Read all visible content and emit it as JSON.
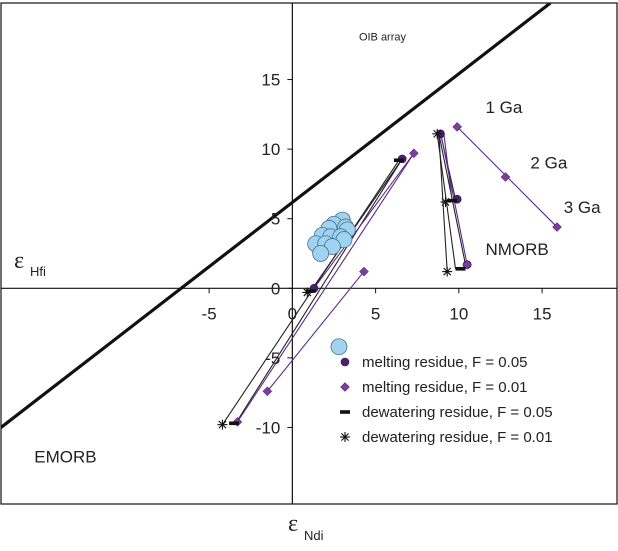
{
  "chart_data": {
    "type": "scatter",
    "xlabel": {
      "symbol": "ε",
      "subscript": "Ndi"
    },
    "ylabel": {
      "symbol": "ε",
      "subscript": "Hfi"
    },
    "xlim": [
      -17.5,
      19.5
    ],
    "ylim": [
      -15.5,
      20.5
    ],
    "x_ticks": [
      "-5",
      "0",
      "5",
      "10",
      "15"
    ],
    "y_ticks": [
      "-10",
      "-5",
      "0",
      "5",
      "10",
      "15"
    ],
    "grid": false,
    "legend_position": "bottom-right",
    "colors": {
      "data_points": "#9fd3ef",
      "melting_residue_f005": "#4a2170",
      "melting_residue_f001": "#7a3ea1",
      "trajectory_black": "#222222",
      "trajectory_purple": "#5b2a86"
    },
    "oib_array_line": {
      "label": "OIB array",
      "x": [
        -17.5,
        15.5
      ],
      "y": [
        -10,
        20.5
      ]
    },
    "data_points": [
      {
        "x": 3.0,
        "y": 4.9
      },
      {
        "x": 2.5,
        "y": 4.6
      },
      {
        "x": 3.2,
        "y": 4.4
      },
      {
        "x": 3.3,
        "y": 4.2
      },
      {
        "x": 2.2,
        "y": 4.3
      },
      {
        "x": 1.8,
        "y": 3.8
      },
      {
        "x": 2.3,
        "y": 3.7
      },
      {
        "x": 2.9,
        "y": 3.7
      },
      {
        "x": 3.1,
        "y": 3.5
      },
      {
        "x": 1.4,
        "y": 3.2
      },
      {
        "x": 2.0,
        "y": 3.2
      },
      {
        "x": 2.4,
        "y": 3.0
      },
      {
        "x": 1.7,
        "y": 2.5
      },
      {
        "x": 2.8,
        "y": -4.2
      }
    ],
    "trajectories": [
      {
        "color": "#222222",
        "from": [
          -4.2,
          -9.8
        ],
        "to": [
          6.4,
          9.2
        ]
      },
      {
        "color": "#222222",
        "from": [
          -3.4,
          -9.7
        ],
        "to": [
          6.6,
          9.3
        ]
      },
      {
        "color": "#222222",
        "from": [
          1.1,
          -0.2
        ],
        "to": [
          6.6,
          9.3
        ]
      },
      {
        "color": "#5b2a86",
        "from": [
          1.3,
          0.0
        ],
        "to": [
          7.3,
          9.7
        ]
      },
      {
        "color": "#5b2a86",
        "from": [
          -3.3,
          -9.6
        ],
        "to": [
          7.3,
          9.7
        ]
      },
      {
        "color": "#5b2a86",
        "from": [
          -1.5,
          -7.4
        ],
        "to": [
          4.3,
          1.2
        ]
      },
      {
        "color": "#222222",
        "from": [
          8.7,
          11.1
        ],
        "to": [
          9.8,
          1.4
        ]
      },
      {
        "color": "#222222",
        "from": [
          8.8,
          11.1
        ],
        "to": [
          10.4,
          1.7
        ]
      },
      {
        "color": "#222222",
        "from": [
          8.9,
          11.1
        ],
        "to": [
          9.8,
          6.4
        ]
      },
      {
        "color": "#222222",
        "from": [
          8.8,
          11.1
        ],
        "to": [
          9.3,
          1.2
        ]
      },
      {
        "color": "#5b2a86",
        "from": [
          8.9,
          11.2
        ],
        "to": [
          10.5,
          1.7
        ]
      },
      {
        "color": "#5b2a86",
        "from": [
          9.9,
          11.6
        ],
        "to": [
          15.9,
          4.4
        ]
      },
      {
        "color": "#5b2a86",
        "from": [
          9.1,
          11.1
        ],
        "to": [
          9.6,
          6.3
        ]
      }
    ],
    "series": [
      {
        "name": "melting residue, F = 0.05",
        "marker": "circle",
        "points": [
          [
            6.6,
            9.3
          ],
          [
            8.9,
            11.1
          ],
          [
            9.9,
            6.4
          ],
          [
            10.5,
            1.7
          ],
          [
            1.3,
            0.0
          ]
        ]
      },
      {
        "name": "melting residue, F = 0.01",
        "marker": "diamond",
        "points": [
          [
            7.3,
            9.7
          ],
          [
            9.9,
            11.6
          ],
          [
            12.8,
            8.0
          ],
          [
            15.9,
            4.4
          ],
          [
            10.5,
            1.7
          ],
          [
            4.3,
            1.2
          ],
          [
            -1.5,
            -7.4
          ],
          [
            -3.3,
            -9.6
          ]
        ]
      },
      {
        "name": "dewatering residue, F = 0.05",
        "marker": "dash",
        "points": [
          [
            6.4,
            9.2
          ],
          [
            9.6,
            6.3
          ],
          [
            10.1,
            1.4
          ],
          [
            1.1,
            -0.2
          ],
          [
            -3.5,
            -9.7
          ]
        ]
      },
      {
        "name": "dewatering residue, F = 0.01",
        "marker": "asterisk",
        "points": [
          [
            8.7,
            11.1
          ],
          [
            9.2,
            6.2
          ],
          [
            9.3,
            1.2
          ],
          [
            0.9,
            -0.3
          ],
          [
            -4.2,
            -9.8
          ]
        ]
      }
    ],
    "annotations": [
      {
        "text": "1 Ga",
        "x": 11.6,
        "y": 12.6
      },
      {
        "text": "2 Ga",
        "x": 14.3,
        "y": 8.6
      },
      {
        "text": "3 Ga",
        "x": 16.3,
        "y": 5.4
      },
      {
        "text": "NMORB",
        "x": 11.6,
        "y": 2.4
      },
      {
        "text": "EMORB",
        "x": -15.5,
        "y": -12.5
      },
      {
        "text": "OIB array",
        "x": 4.0,
        "y": 17.8
      }
    ]
  }
}
